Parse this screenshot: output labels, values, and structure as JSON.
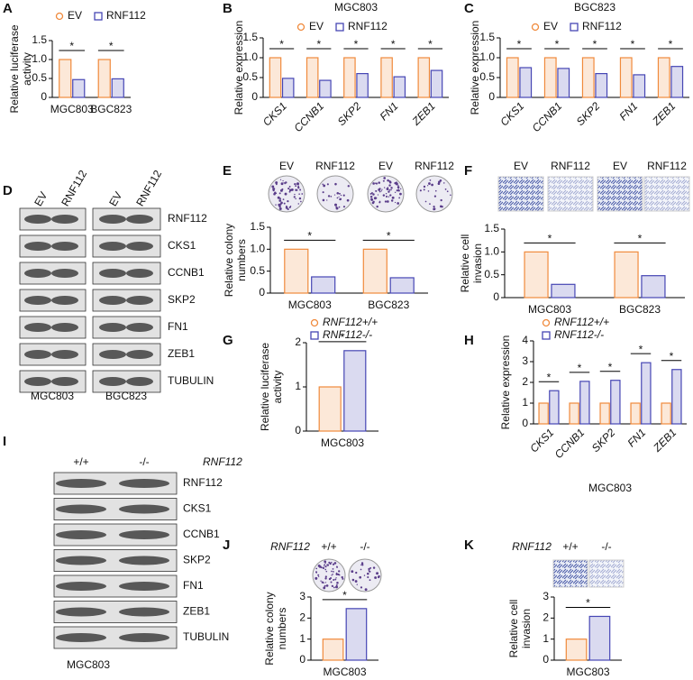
{
  "chart_data": [
    {
      "panel": "A",
      "type": "bar",
      "ylabel": [
        "Relative luciferase",
        "activity"
      ],
      "categories": [
        "MGC803",
        "BGC823"
      ],
      "series": [
        {
          "name": "EV",
          "color": "#f08a3c",
          "marker": "circle",
          "values": [
            1.0,
            1.0
          ]
        },
        {
          "name": "RNF112",
          "color": "#4646b4",
          "marker": "square",
          "values": [
            0.47,
            0.49
          ]
        }
      ],
      "ylim": [
        0,
        1.5
      ],
      "yticks": [
        0,
        0.5,
        {
          "value": 1,
          "label": "1.0"
        },
        1.5
      ],
      "annotations": [
        "*",
        "*"
      ],
      "legend": "top"
    },
    {
      "panel": "B",
      "type": "bar",
      "title": "MGC803",
      "ylabel": [
        "Relative expression"
      ],
      "categories": [
        "CKS1",
        "CCNB1",
        "SKP2",
        "FN1",
        "ZEB1"
      ],
      "category_style": "italic-rotated",
      "series": [
        {
          "name": "EV",
          "color": "#f08a3c",
          "marker": "circle",
          "values": [
            1.0,
            1.0,
            1.0,
            1.0,
            1.0
          ]
        },
        {
          "name": "RNF112",
          "color": "#4646b4",
          "marker": "square",
          "values": [
            0.48,
            0.43,
            0.6,
            0.52,
            0.68
          ]
        }
      ],
      "ylim": [
        0,
        1.5
      ],
      "yticks": [
        0,
        0.5,
        {
          "value": 1,
          "label": "1.0"
        },
        1.5
      ],
      "annotations": [
        "*",
        "*",
        "*",
        "*",
        "*"
      ],
      "legend": "top"
    },
    {
      "panel": "C",
      "type": "bar",
      "title": "BGC823",
      "ylabel": [
        "Relative expression"
      ],
      "categories": [
        "CKS1",
        "CCNB1",
        "SKP2",
        "FN1",
        "ZEB1"
      ],
      "category_style": "italic-rotated",
      "series": [
        {
          "name": "EV",
          "color": "#f08a3c",
          "marker": "circle",
          "values": [
            1.0,
            1.0,
            1.0,
            1.0,
            1.0
          ]
        },
        {
          "name": "RNF112",
          "color": "#4646b4",
          "marker": "square",
          "values": [
            0.75,
            0.73,
            0.6,
            0.57,
            0.78
          ]
        }
      ],
      "ylim": [
        0,
        1.5
      ],
      "yticks": [
        0,
        0.5,
        {
          "value": 1,
          "label": "1.0"
        },
        1.5
      ],
      "annotations": [
        "*",
        "*",
        "*",
        "*",
        "*"
      ],
      "legend": "top"
    },
    {
      "panel": "E",
      "type": "bar",
      "image_labels": [
        "EV",
        "RNF112",
        "EV",
        "RNF112"
      ],
      "image_kind": "dish",
      "ylabel": [
        "Relative colony",
        "numbers"
      ],
      "categories": [
        "MGC803",
        "BGC823"
      ],
      "series": [
        {
          "color": "#f08a3c",
          "values": [
            1.0,
            1.0
          ]
        },
        {
          "color": "#4646b4",
          "values": [
            0.37,
            0.35
          ]
        }
      ],
      "ylim": [
        0,
        1.5
      ],
      "yticks": [
        0,
        0.5,
        {
          "value": 1,
          "label": "1.0"
        },
        1.5
      ],
      "annotations": [
        "*",
        "*"
      ]
    },
    {
      "panel": "F",
      "type": "bar",
      "image_labels": [
        "EV",
        "RNF112",
        "EV",
        "RNF112"
      ],
      "image_kind": "field",
      "ylabel": [
        "Relative cell",
        "invasion"
      ],
      "categories": [
        "MGC803",
        "BGC823"
      ],
      "series": [
        {
          "color": "#f08a3c",
          "values": [
            1.0,
            1.0
          ]
        },
        {
          "color": "#4646b4",
          "values": [
            0.29,
            0.48
          ]
        }
      ],
      "ylim": [
        0,
        1.5
      ],
      "yticks": [
        0,
        0.5,
        {
          "value": 1,
          "label": "1.0"
        },
        1.5
      ],
      "annotations": [
        "*",
        "*"
      ]
    },
    {
      "panel": "G",
      "type": "bar",
      "ylabel": [
        "Relative luciferase",
        "activity"
      ],
      "categories": [
        "MGC803"
      ],
      "series": [
        {
          "name": "RNF112+/+",
          "color": "#f08a3c",
          "marker": "circle",
          "values": [
            1.0
          ]
        },
        {
          "name": "RNF112-/-",
          "color": "#4646b4",
          "marker": "square",
          "values": [
            1.82
          ]
        }
      ],
      "ylim": [
        0,
        2
      ],
      "yticks": [
        0,
        1,
        2
      ],
      "annotations": [
        "*"
      ],
      "legend": "top-left"
    },
    {
      "panel": "H",
      "type": "bar",
      "ylabel": [
        "Relative expression"
      ],
      "xlabel": "MGC803",
      "categories": [
        "CKS1",
        "CCNB1",
        "SKP2",
        "FN1",
        "ZEB1"
      ],
      "category_style": "italic-rotated",
      "series": [
        {
          "name": "RNF112+/+",
          "color": "#f08a3c",
          "marker": "circle",
          "values": [
            1.0,
            1.0,
            1.0,
            1.0,
            1.0
          ]
        },
        {
          "name": "RNF112-/-",
          "color": "#4646b4",
          "marker": "square",
          "values": [
            1.6,
            2.05,
            2.1,
            2.95,
            2.62
          ]
        }
      ],
      "ylim": [
        0,
        4
      ],
      "yticks": [
        0,
        1,
        2,
        3,
        4
      ],
      "annotations": [
        "*",
        "*",
        "*",
        "*",
        "*"
      ],
      "legend": "top-left"
    },
    {
      "panel": "J",
      "type": "bar",
      "image_title": "RNF112",
      "image_labels": [
        "+/+",
        "-/-"
      ],
      "image_kind": "dish",
      "ylabel": [
        "Relative colony",
        "numbers"
      ],
      "categories": [
        "MGC803"
      ],
      "series": [
        {
          "color": "#f08a3c",
          "values": [
            1.0
          ]
        },
        {
          "color": "#4646b4",
          "values": [
            2.45
          ]
        }
      ],
      "ylim": [
        0,
        3
      ],
      "yticks": [
        0,
        1,
        2,
        3
      ],
      "annotations": [
        "*"
      ]
    },
    {
      "panel": "K",
      "type": "bar",
      "image_title": "RNF112",
      "image_labels": [
        "+/+",
        "-/-"
      ],
      "image_kind": "field",
      "ylabel": [
        "Relative cell",
        "invasion"
      ],
      "categories": [
        "MGC803"
      ],
      "series": [
        {
          "color": "#f08a3c",
          "values": [
            1.0
          ]
        },
        {
          "color": "#4646b4",
          "values": [
            2.08
          ]
        }
      ],
      "ylim": [
        0,
        3
      ],
      "yticks": [
        0,
        1,
        2,
        3
      ],
      "annotations": [
        "*"
      ]
    }
  ],
  "blots": [
    {
      "panel": "D",
      "lanes": [
        "EV",
        "RNF112",
        "EV",
        "RNF112"
      ],
      "proteins": [
        "RNF112",
        "CKS1",
        "CCNB1",
        "SKP2",
        "FN1",
        "ZEB1",
        "TUBULIN"
      ],
      "cell_lines": [
        "MGC803",
        "BGC823"
      ]
    },
    {
      "panel": "I",
      "lane_title": "RNF112",
      "lanes": [
        "+/+",
        "-/-"
      ],
      "proteins": [
        "RNF112",
        "CKS1",
        "CCNB1",
        "SKP2",
        "FN1",
        "ZEB1",
        "TUBULIN"
      ],
      "cell_lines": [
        "MGC803"
      ]
    }
  ]
}
